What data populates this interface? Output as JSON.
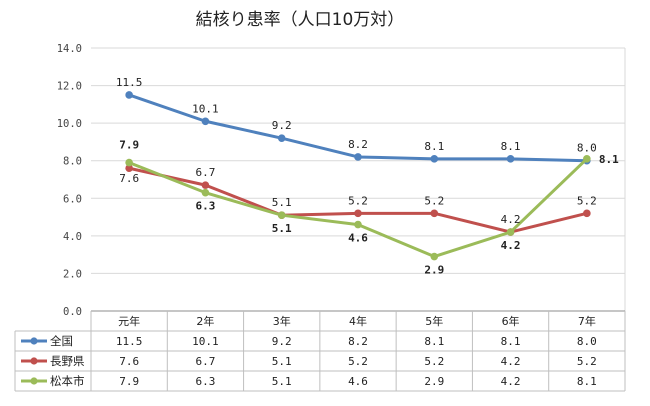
{
  "chart_data": {
    "type": "line",
    "title": "結核り患率（人口10万対）",
    "categories": [
      "元年",
      "2年",
      "3年",
      "4年",
      "5年",
      "6年",
      "7年"
    ],
    "ylim": [
      0,
      14
    ],
    "yticks": [
      "0.0",
      "2.0",
      "4.0",
      "6.0",
      "8.0",
      "10.0",
      "12.0",
      "14.0"
    ],
    "grid": true,
    "legend": "data-table-left",
    "series": [
      {
        "name": "全国",
        "color": "#4f81bd",
        "values": [
          11.5,
          10.1,
          9.2,
          8.2,
          8.1,
          8.1,
          8.0
        ],
        "labels": [
          "11.5",
          "10.1",
          "9.2",
          "8.2",
          "8.1",
          "8.1",
          "8.0"
        ],
        "table": [
          "11.5",
          "10.1",
          "9.2",
          "8.2",
          "8.1",
          "8.1",
          "8.0"
        ]
      },
      {
        "name": "長野県",
        "color": "#c0504d",
        "values": [
          7.6,
          6.7,
          5.1,
          5.2,
          5.2,
          4.2,
          5.2
        ],
        "labels": [
          "7.6",
          "6.7",
          "5.1",
          "5.2",
          "5.2",
          "4.2",
          "5.2"
        ],
        "table": [
          "7.6",
          "6.7",
          "5.1",
          "5.2",
          "5.2",
          "4.2",
          "5.2"
        ]
      },
      {
        "name": "松本市",
        "color": "#9bbb59",
        "values": [
          7.9,
          6.3,
          5.1,
          4.6,
          2.9,
          4.2,
          8.1
        ],
        "labels": [
          "7.9",
          "6.3",
          "5.1",
          "4.6",
          "2.9",
          "4.2",
          "8.1"
        ],
        "table": [
          "7.9",
          "6.3",
          "5.1",
          "4.6",
          "2.9",
          "4.2",
          "8.1"
        ]
      }
    ]
  }
}
